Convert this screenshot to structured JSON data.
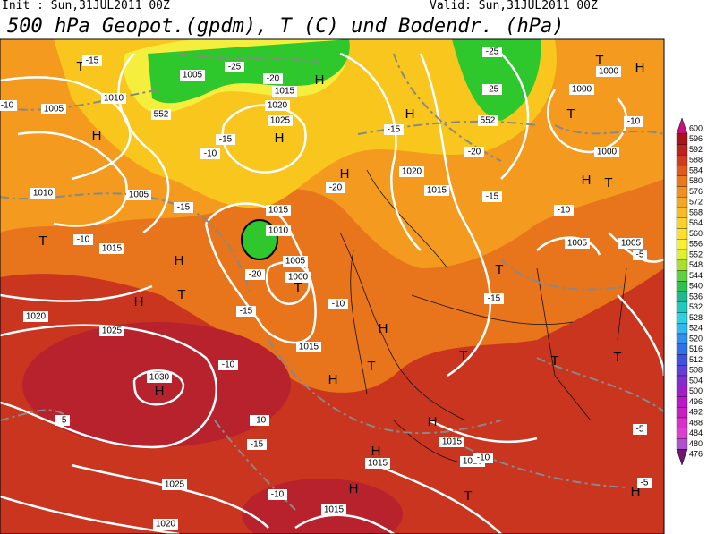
{
  "header": {
    "init": "Init : Sun,31JUL2011 00Z",
    "valid": "Valid: Sun,31JUL2011 00Z",
    "title": "500 hPa Geopot.(gpdm), T (C) und Bodendr. (hPa)"
  },
  "colorbar": {
    "labels": [
      600,
      596,
      592,
      588,
      584,
      580,
      576,
      572,
      568,
      564,
      560,
      556,
      552,
      548,
      544,
      540,
      536,
      532,
      528,
      524,
      520,
      516,
      512,
      508,
      504,
      500,
      496,
      492,
      488,
      484,
      480,
      476
    ]
  },
  "map": {
    "labels": [
      "T",
      "H",
      "1010",
      "1005",
      "1010",
      "1005",
      "T",
      "1015",
      "H",
      "T",
      "H",
      "1020",
      "1025",
      "1030",
      "H",
      "1025",
      "1020",
      "H",
      "1020",
      "1025",
      "1015",
      "1005",
      "H",
      "1010",
      "1015",
      "1005",
      "1000",
      "T",
      "1015",
      "H",
      "H",
      "1020",
      "1015",
      "H",
      "T",
      "H",
      "H",
      "1015",
      "1010",
      "H",
      "1015",
      "T",
      "H",
      "1015",
      "T",
      "T",
      "T",
      "H",
      "T",
      "1000",
      "T",
      "1000",
      "T",
      "1000",
      "H",
      "1005",
      "1005",
      "T",
      "H",
      "-15",
      "-10",
      "-20",
      "-25",
      "-15",
      "-10",
      "-20",
      "-15",
      "-20",
      "-15",
      "-10",
      "-5",
      "-10",
      "-10",
      "-15",
      "-10",
      "-5",
      "-25",
      "-25",
      "-15",
      "-10",
      "-10",
      "-20",
      "-15",
      "-10",
      "-15",
      "-10",
      "-5",
      "-5",
      "552",
      "552"
    ]
  }
}
